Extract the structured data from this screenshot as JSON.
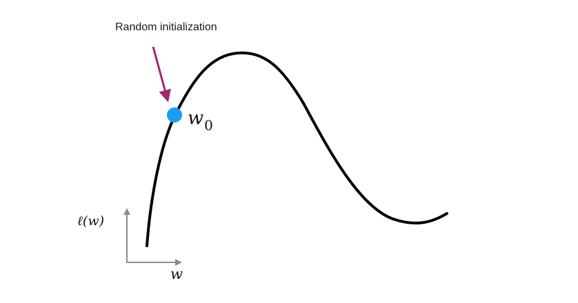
{
  "annotation": {
    "text": "Random initialization",
    "arrow_color": "#9c2a6c"
  },
  "point": {
    "label_base": "w",
    "label_sub": "0",
    "color": "#1a9ff0"
  },
  "curve": {
    "color": "#000000"
  },
  "axes": {
    "y_label": "ℓ(w)",
    "x_label": "w",
    "color": "#8c8c8c"
  }
}
